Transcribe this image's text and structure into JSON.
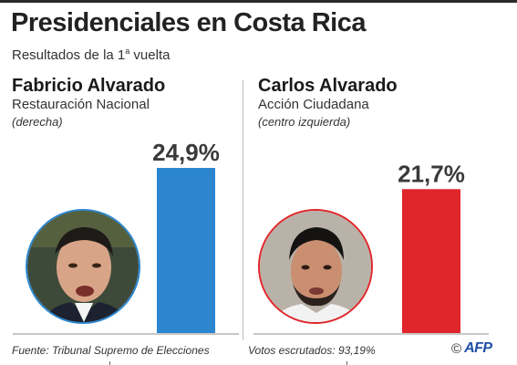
{
  "title": "Presidenciales en Costa Rica",
  "subtitle_main": "Resultados de la 1",
  "subtitle_sup": "a",
  "subtitle_rest": " vuelta",
  "candidates": [
    {
      "name": "Fabricio Alvarado",
      "party": "Restauración Nacional",
      "ideology": "(derecha)"
    },
    {
      "name": "Carlos Alvarado",
      "party": "Acción Ciudadana",
      "ideology": "(centro izquierda)"
    }
  ],
  "chart_data": {
    "type": "bar",
    "title": "Presidenciales en Costa Rica",
    "subtitle": "Resultados de la 1a vuelta",
    "categories": [
      "Fabricio Alvarado",
      "Carlos Alvarado"
    ],
    "values": [
      24.9,
      21.7
    ],
    "value_labels": [
      "24,9%",
      "21,7%"
    ],
    "colors": [
      "#2b86cf",
      "#e0262b"
    ],
    "xlabel": "",
    "ylabel": "",
    "ylim": [
      0,
      24.9
    ],
    "grid": false,
    "legend": "none"
  },
  "footer": {
    "source": "Fuente: Tribunal Supremo de Elecciones",
    "votes": "Votos escrutados: 93,19%",
    "copyright": "©",
    "agency": "AFP"
  }
}
